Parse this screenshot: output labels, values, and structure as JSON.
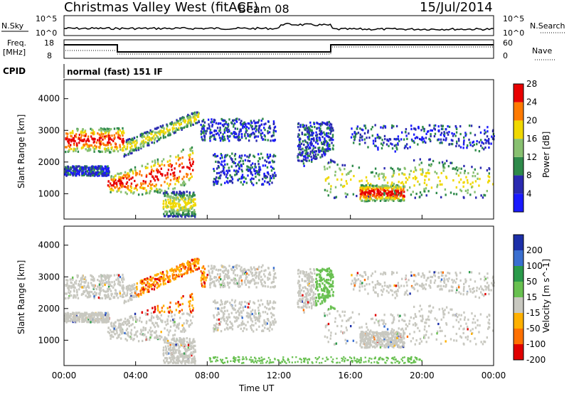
{
  "header": {
    "station": "Christmas Valley West (fitACF)",
    "beam": "Beam 08",
    "date": "15/Jul/2014"
  },
  "panels": {
    "nsky_label": "N.Sky",
    "nsearch_label": "N.Search",
    "freq_label_line1": "Freq.",
    "freq_label_line2": "[MHz]",
    "nave_label": "Nave",
    "cpid_label": "CPID",
    "cpid_value": "normal (fast) 151 IF",
    "noise_ticks": [
      "10^5",
      "10^0"
    ],
    "freq_ticks": [
      "18",
      "8"
    ],
    "nave_ticks": [
      "60",
      "0"
    ]
  },
  "chart_data": [
    {
      "type": "heatmap",
      "name": "power",
      "ylabel": "Slant Range [km]",
      "yticks": [
        1000,
        2000,
        3000,
        4000
      ],
      "ylim": [
        200,
        4600
      ],
      "xlim": [
        0,
        24
      ],
      "colorbar_label": "Power [dB]",
      "colorbar_ticks": [
        4,
        8,
        12,
        16,
        20,
        24,
        28
      ],
      "colorbar_colors": [
        "#1a1aff",
        "#2a2ab0",
        "#2e8a4a",
        "#88c070",
        "#f0d800",
        "#ff7a00",
        "#e80000"
      ]
    },
    {
      "type": "heatmap",
      "name": "velocity",
      "ylabel": "Slant Range [km]",
      "yticks": [
        1000,
        2000,
        3000,
        4000
      ],
      "ylim": [
        200,
        4600
      ],
      "xlim": [
        0,
        24
      ],
      "xlabel": "Time UT",
      "xticks": [
        "00:00",
        "04:00",
        "08:00",
        "12:00",
        "16:00",
        "20:00",
        "00:00"
      ],
      "colorbar_label": "Velocity [m s^-1]",
      "colorbar_ticks": [
        "200",
        "100",
        "50",
        "15",
        "-15",
        "-50",
        "-100",
        "-200"
      ],
      "colorbar_colors": [
        "#1c2fa8",
        "#3a6fd0",
        "#2a9a4a",
        "#68c050",
        "#c8c8c0",
        "#ffb000",
        "#ff7000",
        "#e00000"
      ]
    }
  ]
}
